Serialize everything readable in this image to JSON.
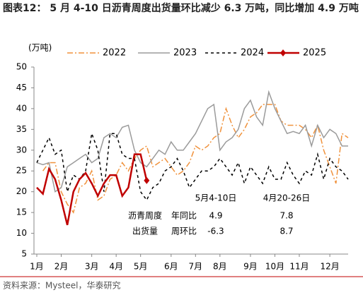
{
  "chart_data": {
    "type": "line",
    "title": "图表12：  5 月 4-10 日沥青周度出货量环比减少 6.3 万吨，同比增加 4.9 万吨",
    "y_unit": "(万吨)",
    "source": "资料来源：Mysteel，华泰研究",
    "categories": [
      "1月",
      null,
      null,
      null,
      "2月",
      null,
      null,
      null,
      null,
      "3月",
      null,
      null,
      null,
      "4月",
      null,
      null,
      null,
      "5月",
      null,
      null,
      null,
      null,
      "6月",
      null,
      null,
      null,
      "7月",
      null,
      null,
      null,
      "8月",
      null,
      null,
      null,
      null,
      "9月",
      null,
      null,
      null,
      "10月",
      null,
      null,
      null,
      "11月",
      null,
      null,
      null,
      null,
      "12月",
      null,
      null,
      null
    ],
    "ylim": [
      5,
      50
    ],
    "yticks": [
      5,
      10,
      15,
      20,
      25,
      30,
      35,
      40,
      45,
      50
    ],
    "series": [
      {
        "name": "2022",
        "color": "#f0923c",
        "line_style": "dashdot",
        "values": [
          null,
          25,
          27,
          27,
          20,
          17,
          15,
          21,
          22,
          25,
          18,
          19,
          23,
          24,
          27,
          25,
          28,
          30,
          31,
          26,
          27,
          28,
          26,
          24,
          25,
          27,
          31,
          30,
          31,
          33,
          34,
          40,
          36,
          33,
          35,
          38,
          39,
          41,
          41,
          41,
          37,
          36,
          36,
          36,
          35,
          33,
          36,
          30,
          26,
          22,
          34,
          33
        ]
      },
      {
        "name": "2023",
        "color": "#9b9b9b",
        "line_style": "solid",
        "values": [
          27,
          26.5,
          27,
          20,
          21,
          26,
          27,
          28,
          29,
          27,
          28,
          33,
          34,
          33,
          35.5,
          36,
          30,
          27,
          26,
          28,
          30,
          29,
          32,
          30,
          30,
          32,
          34,
          37,
          40,
          41,
          30,
          32,
          33,
          35,
          40,
          42,
          38,
          36,
          44,
          40,
          37,
          34,
          34.5,
          34,
          36,
          31,
          36,
          33,
          35,
          34,
          31,
          31
        ]
      },
      {
        "name": "2024",
        "color": "#000000",
        "line_style": "dashed",
        "values": [
          27,
          30,
          33,
          29,
          30,
          20,
          24,
          23,
          25,
          34,
          30,
          20,
          34,
          34,
          29,
          28,
          28,
          20,
          18,
          21,
          22,
          25,
          26,
          28,
          25,
          21,
          23,
          25,
          25,
          26,
          28,
          26,
          24,
          27,
          22,
          26,
          24,
          22,
          26,
          23,
          23,
          27,
          24,
          22,
          25,
          24,
          29,
          23,
          28,
          26,
          25,
          23
        ]
      },
      {
        "name": "2025",
        "color": "#c00000",
        "line_style": "solid",
        "marker": "diamond",
        "values": [
          21,
          19.5,
          25.5,
          23,
          18,
          12,
          20,
          23,
          24.5,
          22,
          19,
          22,
          24,
          24,
          19,
          21,
          29,
          29,
          22.7,
          null,
          null,
          null,
          null,
          null,
          null,
          null,
          null,
          null,
          null,
          null,
          null,
          null,
          null,
          null,
          null,
          null,
          null,
          null,
          null,
          null,
          null,
          null,
          null,
          null,
          null,
          null,
          null,
          null,
          null,
          null,
          null,
          null
        ]
      }
    ],
    "annotation": {
      "columns": [
        "5月4-10日",
        "4月20-26日"
      ],
      "rows": [
        [
          "沥青周度",
          "年同比",
          4.9,
          7.8
        ],
        [
          "出货量",
          "周环比",
          -6.3,
          8.7
        ]
      ]
    }
  }
}
